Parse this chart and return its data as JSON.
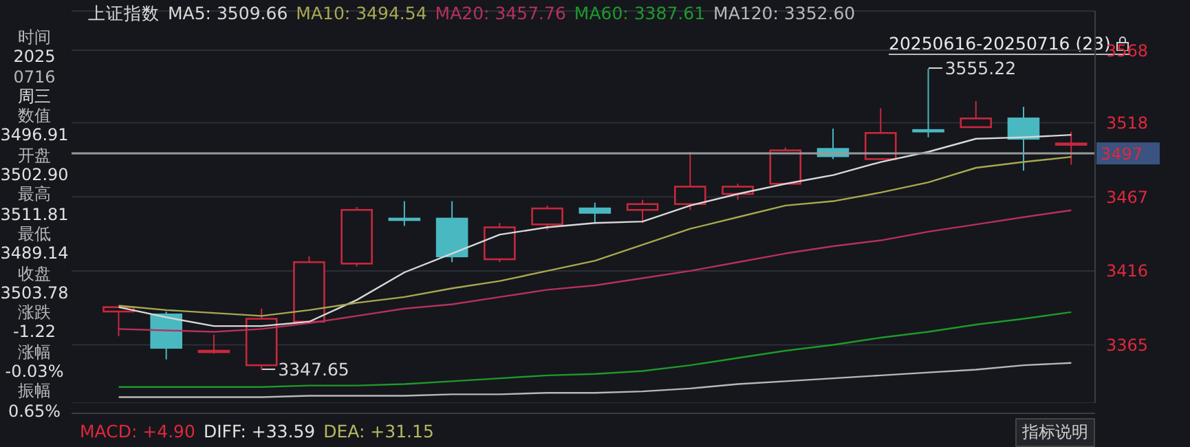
{
  "chart_data": {
    "type": "candlestick",
    "title": "上证指数",
    "categories": [
      null,
      null,
      null,
      null,
      null,
      null,
      null,
      null,
      null,
      null,
      null,
      null,
      null,
      null,
      null,
      null,
      null,
      null,
      null,
      null,
      null
    ],
    "ohlc": [
      [
        3388,
        3392,
        3371,
        3391
      ],
      [
        3386,
        3388,
        3355,
        3363
      ],
      [
        3360,
        3372,
        3359,
        3361
      ],
      [
        3351,
        3390,
        3347.65,
        3383
      ],
      [
        3381,
        3426,
        3381,
        3422
      ],
      [
        3421,
        3460,
        3419,
        3458
      ],
      [
        3452,
        3464,
        3447,
        3451
      ],
      [
        3452,
        3464,
        3422,
        3426
      ],
      [
        3424,
        3449,
        3422,
        3446
      ],
      [
        3448,
        3461,
        3444,
        3459
      ],
      [
        3459,
        3463,
        3449,
        3456
      ],
      [
        3458,
        3465,
        3449,
        3462
      ],
      [
        3462,
        3498,
        3458,
        3474
      ],
      [
        3469,
        3476,
        3465,
        3474
      ],
      [
        3476,
        3501,
        3476,
        3499
      ],
      [
        3500,
        3514,
        3493,
        3495
      ],
      [
        3493,
        3528,
        3493,
        3511
      ],
      [
        3513,
        3555.22,
        3508,
        3512
      ],
      [
        3515,
        3533,
        3515,
        3521
      ],
      [
        3521,
        3529,
        3485,
        3507
      ],
      [
        3502.9,
        3511.81,
        3489.14,
        3503.78
      ]
    ],
    "colors": [
      "#c8283c",
      "#4ab8c1",
      "#c8283c",
      "#c8283c",
      "#c8283c",
      "#c8283c",
      "#4ab8c1",
      "#4ab8c1",
      "#c8283c",
      "#c8283c",
      "#4ab8c1",
      "#c8283c",
      "#c8283c",
      "#c8283c",
      "#c8283c",
      "#4ab8c1",
      "#c8283c",
      "#4ab8c1",
      "#c8283c",
      "#4ab8c1",
      "#c8283c"
    ],
    "series": [
      {
        "name": "MA5: 3509.66",
        "type": "line",
        "color": "#d8d8d8",
        "values": [
          3391,
          3384,
          3378,
          3378,
          3381,
          3396,
          3415,
          3428,
          3441,
          3446,
          3449,
          3450,
          3461,
          3469,
          3476,
          3482,
          3491,
          3498,
          3507,
          3508,
          3509.66
        ]
      },
      {
        "name": "MA10: 3494.54",
        "type": "line",
        "color": "#a8a850",
        "values": [
          3392,
          3389,
          3387,
          3385,
          3389,
          3394,
          3398,
          3404,
          3409,
          3416,
          3423,
          3434,
          3445,
          3453,
          3461,
          3464,
          3470,
          3477,
          3487,
          3491,
          3494.54
        ]
      },
      {
        "name": "MA20: 3457.76",
        "type": "line",
        "color": "#b8305c",
        "values": [
          3376,
          3375,
          3374,
          3376,
          3380,
          3385,
          3390,
          3393,
          3398,
          3403,
          3406,
          3411,
          3416,
          3422,
          3428,
          3433,
          3437,
          3443,
          3448,
          3453,
          3457.76
        ]
      },
      {
        "name": "MA60: 3387.61",
        "type": "line",
        "color": "#1e9a2a",
        "values": [
          3336,
          3336,
          3336,
          3336,
          3337,
          3337,
          3338,
          3340,
          3342,
          3344,
          3345,
          3347,
          3351,
          3356,
          3361,
          3365,
          3370,
          3374,
          3379,
          3383,
          3387.61
        ]
      },
      {
        "name": "MA120: 3352.60",
        "type": "line",
        "color": "#b8b8b8",
        "values": [
          3329,
          3329,
          3329,
          3329,
          3330,
          3330,
          3330,
          3331,
          3331,
          3332,
          3332,
          3333,
          3335,
          3338,
          3340,
          3342,
          3344,
          3346,
          3348,
          3351,
          3352.6
        ]
      }
    ],
    "ylim": [
      3325,
      3595
    ],
    "yticks": [
      3365,
      3416,
      3467,
      3518,
      3568
    ],
    "grid": "y",
    "legend": "top",
    "tick_labels": "y",
    "ref_lines": [
      {
        "axis": "y",
        "value": 3496.91,
        "label": "3497",
        "color": "#9a9a9a"
      }
    ],
    "annotations": [
      "20250616-20250716 (23)",
      "3555.22",
      "3347.65",
      "时间",
      "2025",
      "0716",
      "周三",
      "数值",
      "3496.91",
      "开盘",
      "3502.90",
      "最高",
      "3511.81",
      "最低",
      "3489.14",
      "收盘",
      "3503.78",
      "涨跌",
      "-1.22",
      "涨幅",
      "-0.03%",
      "振幅",
      "0.65%",
      "MACD: +4.90",
      "DIFF: +33.59",
      "DEA: +31.15",
      "指标说明"
    ]
  }
}
